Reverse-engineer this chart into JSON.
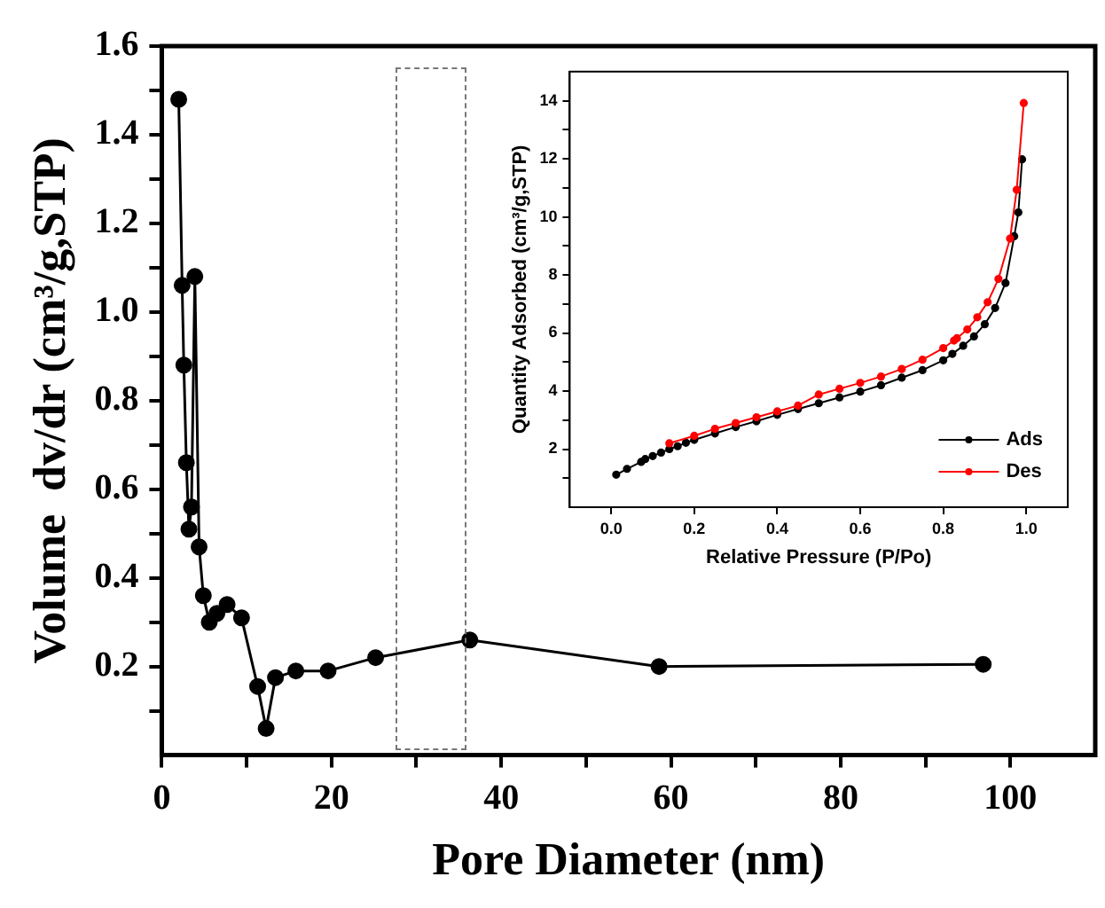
{
  "chart_data": [
    {
      "type": "line",
      "xlabel": "Pore Diameter (nm)",
      "ylabel": "Volume  dv/dr (cm³/g,STP)",
      "color": "#000000",
      "x": [
        2.0,
        2.4,
        2.6,
        2.9,
        3.2,
        3.5,
        3.9,
        4.4,
        4.9,
        5.6,
        6.5,
        7.7,
        9.4,
        11.3,
        12.3,
        13.4,
        15.8,
        19.6,
        25.2,
        36.3,
        58.6,
        96.8
      ],
      "values": [
        1.48,
        1.06,
        0.88,
        0.66,
        0.51,
        0.56,
        1.08,
        0.47,
        0.36,
        0.3,
        0.32,
        0.34,
        0.31,
        0.155,
        0.06,
        0.175,
        0.19,
        0.19,
        0.22,
        0.26,
        0.2,
        0.205
      ],
      "xlim": [
        0,
        110
      ],
      "xticks": [
        0,
        {
          "value": 10,
          "label": null
        },
        20,
        {
          "value": 30,
          "label": null
        },
        40,
        {
          "value": 50,
          "label": null
        },
        60,
        {
          "value": 70,
          "label": null
        },
        80,
        {
          "value": 90,
          "label": null
        },
        100
      ],
      "ylim": [
        0,
        1.6
      ],
      "yticks": [
        {
          "value": 0.1,
          "label": null
        },
        0.2,
        {
          "value": 0.3,
          "label": null
        },
        0.4,
        {
          "value": 0.5,
          "label": null
        },
        0.6,
        {
          "value": 0.7,
          "label": null
        },
        0.8,
        {
          "value": 0.9,
          "label": null
        },
        {
          "value": 1.0,
          "label": "1.0"
        },
        {
          "value": 1.1,
          "label": null
        },
        1.2,
        {
          "value": 1.3,
          "label": null
        },
        1.4,
        {
          "value": 1.5,
          "label": null
        },
        1.6
      ],
      "marker": "circle",
      "grid": false,
      "legend": false
    },
    {
      "type": "line",
      "xlabel": "Relative Pressure (P/Po)",
      "ylabel": "Quantity Adsorbed (cm³/g,STP)",
      "series": [
        {
          "name": "Ads",
          "color": "#000000",
          "x": [
            0.012,
            0.038,
            0.072,
            0.082,
            0.1,
            0.12,
            0.14,
            0.16,
            0.18,
            0.2,
            0.25,
            0.3,
            0.35,
            0.4,
            0.45,
            0.5,
            0.55,
            0.6,
            0.65,
            0.7,
            0.75,
            0.8,
            0.822,
            0.848,
            0.874,
            0.9,
            0.925,
            0.95,
            0.971,
            0.981,
            0.99
          ],
          "values": [
            1.12,
            1.32,
            1.56,
            1.66,
            1.76,
            1.88,
            2.0,
            2.1,
            2.22,
            2.32,
            2.54,
            2.76,
            2.96,
            3.18,
            3.38,
            3.58,
            3.78,
            3.98,
            4.2,
            4.46,
            4.72,
            5.06,
            5.28,
            5.56,
            5.88,
            6.3,
            6.86,
            7.72,
            9.33,
            10.15,
            11.98
          ]
        },
        {
          "name": "Des",
          "color": "#ff0000",
          "x": [
            0.14,
            0.2,
            0.25,
            0.3,
            0.35,
            0.4,
            0.45,
            0.5,
            0.55,
            0.6,
            0.65,
            0.7,
            0.75,
            0.8,
            0.826,
            0.833,
            0.858,
            0.882,
            0.907,
            0.933,
            0.961,
            0.977,
            0.994
          ],
          "values": [
            2.2,
            2.46,
            2.7,
            2.9,
            3.1,
            3.3,
            3.5,
            3.88,
            4.08,
            4.28,
            4.5,
            4.76,
            5.08,
            5.48,
            5.74,
            5.82,
            6.12,
            6.54,
            7.06,
            7.86,
            9.25,
            10.93,
            13.92
          ]
        }
      ],
      "xlim": [
        -0.1,
        1.1
      ],
      "xticks": [
        {
          "value": 0,
          "label": "0.0"
        },
        0.2,
        0.4,
        0.6,
        0.8,
        {
          "value": 1,
          "label": "1.0"
        }
      ],
      "ylim": [
        0,
        15
      ],
      "yticks": [
        {
          "value": 1,
          "label": null
        },
        2,
        {
          "value": 3,
          "label": null
        },
        4,
        {
          "value": 5,
          "label": null
        },
        6,
        {
          "value": 7,
          "label": null
        },
        8,
        {
          "value": 9,
          "label": null
        },
        10,
        {
          "value": 11,
          "label": null
        },
        12,
        {
          "value": 13,
          "label": null
        },
        14
      ],
      "marker": "circle",
      "grid": false,
      "legend": "bottom right"
    }
  ]
}
